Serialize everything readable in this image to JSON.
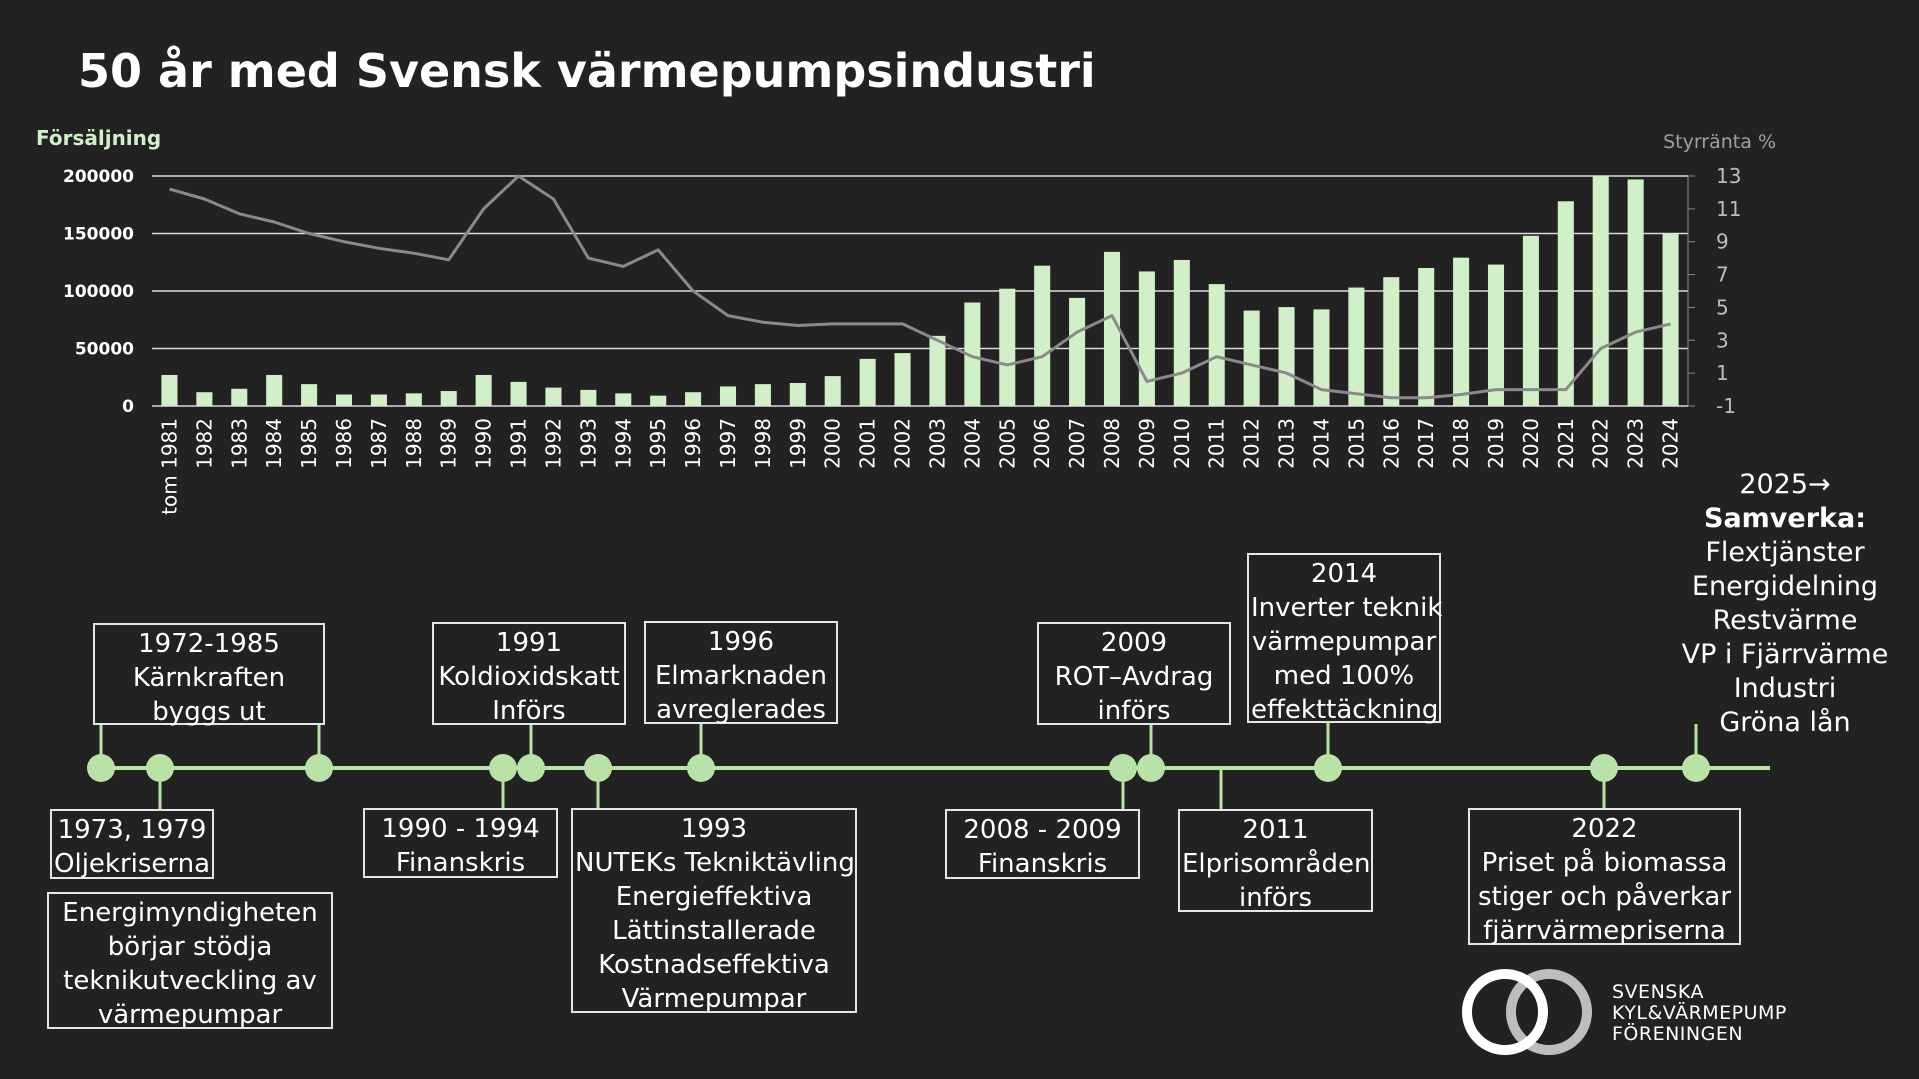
{
  "title": "50 år med Svensk värmepumpsindustri",
  "chart_data": {
    "type": "bar",
    "title": "50 år med Svensk värmepumpsindustri",
    "ylabel": "Försäljning",
    "y2label": "Styrränta %",
    "ylim": [
      0,
      200000
    ],
    "y2lim": [
      -1,
      13
    ],
    "yticks": [
      "200000",
      "150000",
      "100000",
      "50000",
      "0"
    ],
    "y2ticks": [
      "13",
      "11",
      "9",
      "7",
      "5",
      "3",
      "1",
      "-1"
    ],
    "categories": [
      "tom 1981",
      "1982",
      "1983",
      "1984",
      "1985",
      "1986",
      "1987",
      "1988",
      "1989",
      "1990",
      "1991",
      "1992",
      "1993",
      "1994",
      "1995",
      "1996",
      "1997",
      "1998",
      "1999",
      "2000",
      "2001",
      "2002",
      "2003",
      "2004",
      "2005",
      "2006",
      "2007",
      "2008",
      "2009",
      "2010",
      "2011",
      "2012",
      "2013",
      "2014",
      "2015",
      "2016",
      "2017",
      "2018",
      "2019",
      "2020",
      "2021",
      "2022",
      "2023",
      "2024"
    ],
    "series": [
      {
        "type": "bar",
        "color": "#d2f0c8",
        "values": [
          27000,
          12000,
          15000,
          27000,
          19000,
          10000,
          10000,
          11000,
          13000,
          27000,
          21000,
          16000,
          14000,
          11000,
          9000,
          12000,
          17000,
          19000,
          20000,
          26000,
          41000,
          46000,
          61000,
          90000,
          102000,
          122000,
          94000,
          134000,
          117000,
          127000,
          106000,
          83000,
          86000,
          84000,
          103000,
          112000,
          120000,
          129000,
          123000,
          148000,
          178000,
          200000,
          197000,
          150000
        ]
      },
      {
        "type": "line",
        "color": "#8a8a8a",
        "axis": "secondary",
        "values": [
          12.2,
          11.6,
          10.7,
          10.2,
          9.5,
          9.0,
          8.6,
          8.3,
          7.9,
          11.0,
          13.0,
          11.6,
          8.0,
          7.5,
          8.5,
          6.0,
          4.5,
          4.1,
          3.9,
          4.0,
          4.0,
          4.0,
          3.0,
          2.0,
          1.5,
          2.0,
          3.5,
          4.5,
          0.5,
          1.0,
          2.0,
          1.5,
          1.0,
          0.0,
          -0.25,
          -0.5,
          -0.5,
          -0.3,
          0.0,
          0.0,
          0.0,
          2.5,
          3.5,
          4.0
        ]
      }
    ],
    "grid": true
  },
  "timeline": {
    "events_above": [
      {
        "lines": [
          "1972-1985",
          "Kärnkraften",
          "byggs ut"
        ]
      },
      {
        "lines": [
          "1991",
          "Koldioxidskatt",
          "Införs"
        ]
      },
      {
        "lines": [
          "1996",
          "Elmarknaden",
          "avreglerades"
        ]
      },
      {
        "lines": [
          "2009",
          "ROT–Avdrag",
          "införs"
        ]
      },
      {
        "lines": [
          "2014",
          "Inverter teknik",
          "värmepumpar",
          "med 100%",
          "effekttäckning"
        ]
      }
    ],
    "events_below": [
      {
        "lines": [
          "1973, 1979",
          "Oljekriserna"
        ]
      },
      {
        "lines": [
          "Energimyndigheten",
          "börjar stödja",
          "teknikutveckling av",
          "värmepumpar"
        ]
      },
      {
        "lines": [
          "1990 - 1994",
          "Finanskris"
        ]
      },
      {
        "lines": [
          "1993",
          "NUTEKs Tekniktävling",
          "Energieffektiva",
          "Lättinstallerade",
          "Kostnadseffektiva",
          "Värmepumpar"
        ]
      },
      {
        "lines": [
          "2008 - 2009",
          "Finanskris"
        ]
      },
      {
        "lines": [
          "2011",
          "Elprisområden",
          "införs"
        ]
      },
      {
        "lines": [
          "2022",
          "Priset på biomassa",
          "stiger och påverkar",
          "fjärrvärmepriserna"
        ]
      }
    ],
    "future": {
      "heading": "2025",
      "arrow": "→",
      "subheading": "Samverka:",
      "items": [
        "Flextjänster",
        "Energidelning",
        "Restvärme",
        "VP i Fjärrvärme",
        "Industri",
        "Gröna lån"
      ]
    }
  },
  "logo": {
    "lines": [
      "SVENSKA",
      "KYL&VÄRMEPUMP",
      "FÖRENINGEN"
    ]
  },
  "colors": {
    "background": "#222222",
    "bar": "#d2f0c8",
    "line": "#8a8a8a",
    "timeline": "#b8e2a6",
    "text": "#ffffff"
  }
}
